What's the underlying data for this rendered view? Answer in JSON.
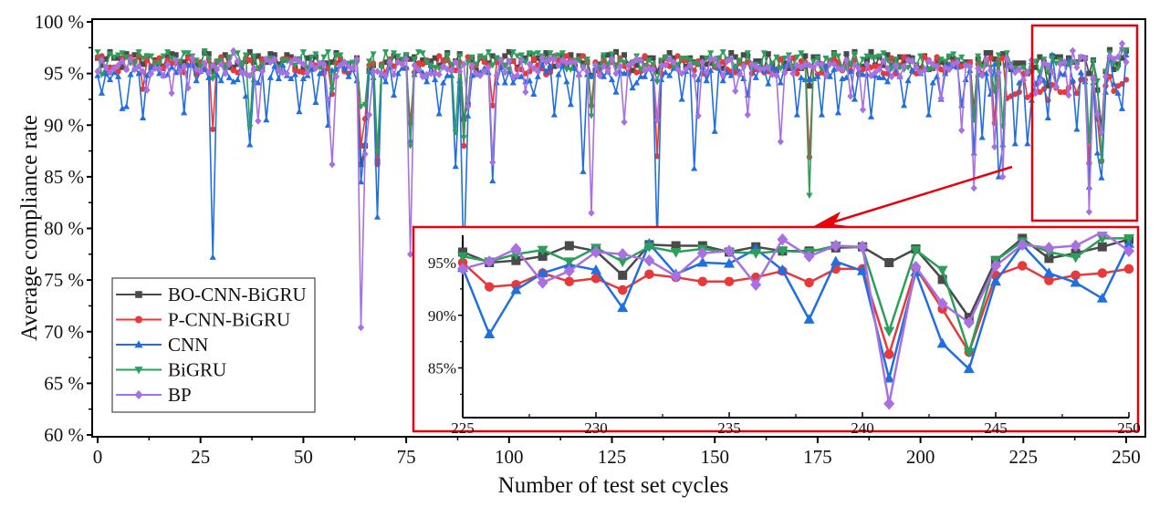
{
  "chart_data": {
    "type": "line",
    "title": "",
    "xlabel": "Number of test set cycles",
    "ylabel": "Average compliance rate",
    "xlim": [
      -1,
      255
    ],
    "ylim": [
      60,
      100
    ],
    "x_ticks": [
      0,
      25,
      50,
      75,
      100,
      125,
      150,
      175,
      200,
      225,
      250
    ],
    "x_tick_labels": [
      "0",
      "25",
      "50",
      "75",
      "100",
      "125",
      "150",
      "175",
      "200",
      "225",
      "250"
    ],
    "y_ticks": [
      60,
      65,
      70,
      75,
      80,
      85,
      90,
      95,
      100
    ],
    "y_tick_labels": [
      "60 %",
      "65 %",
      "70 %",
      "75 %",
      "80 %",
      "85 %",
      "90 %",
      "95 %",
      "100 %"
    ],
    "grid": false,
    "legend": {
      "position": "bottom-left",
      "entries": [
        "BO-CNN-BiGRU",
        "P-CNN-BiGRU",
        "CNN",
        "BiGRU",
        "BP"
      ]
    },
    "series": [
      {
        "name": "BO-CNN-BiGRU",
        "color": "#4a4a4a",
        "marker": "square",
        "baseline": 96.2,
        "dips": {
          "28": 95.2,
          "64": 86.2,
          "65": 88.0,
          "68": 86.5,
          "89": 90.6,
          "90": 92.0,
          "120": 94.8,
          "136": 95.2,
          "173": 93.8,
          "213": 91.5,
          "225": 96.0,
          "226": 95.0,
          "227": 95.2,
          "228": 95.6,
          "229": 96.6,
          "230": 96.1,
          "231": 93.8,
          "232": 96.7,
          "233": 96.6,
          "234": 96.6,
          "235": 96.0,
          "236": 96.5,
          "237": 96.1,
          "238": 96.1,
          "239": 96.4,
          "240": 96.5,
          "241": 95.0,
          "242": 96.3,
          "243": 93.4,
          "244": 89.8,
          "245": 95.2,
          "246": 97.3,
          "247": 95.4,
          "248": 95.9,
          "249": 96.5,
          "250": 97.2
        }
      },
      {
        "name": "P-CNN-BiGRU",
        "color": "#e8393a",
        "marker": "circle",
        "baseline": 95.8,
        "dips": {
          "11": 93.5,
          "28": 89.6,
          "57": 93.0,
          "64": 88.0,
          "65": 90.6,
          "68": 86.2,
          "76": 90.2,
          "89": 88.0,
          "96": 91.9,
          "120": 91.9,
          "136": 87.0,
          "173": 86.9,
          "213": 91.0,
          "218": 90.2,
          "221": 92.6,
          "222": 92.8,
          "223": 93.0,
          "224": 93.2,
          "225": 95.0,
          "226": 92.7,
          "227": 92.9,
          "228": 94.0,
          "229": 93.2,
          "230": 93.5,
          "231": 92.4,
          "232": 93.9,
          "233": 93.6,
          "234": 93.2,
          "235": 93.2,
          "236": 93.6,
          "237": 94.2,
          "238": 93.1,
          "239": 94.4,
          "240": 94.4,
          "241": 86.3,
          "242": 94.5,
          "243": 90.6,
          "244": 86.5,
          "245": 93.8,
          "246": 94.7,
          "247": 93.3,
          "248": 93.8,
          "249": 94.0,
          "250": 94.4
        }
      },
      {
        "name": "CNN",
        "color": "#1f6fe0",
        "marker": "triangle-up",
        "baseline": 95.0,
        "dips": {
          "1": 93.1,
          "6": 91.6,
          "7": 91.8,
          "11": 90.7,
          "21": 91.2,
          "28": 77.2,
          "36": 92.8,
          "37": 88.1,
          "41": 90.5,
          "49": 91.3,
          "53": 92.2,
          "56": 90.0,
          "64": 84.5,
          "65": 88.2,
          "68": 81.1,
          "72": 92.9,
          "76": 88.5,
          "83": 91.1,
          "87": 86.0,
          "89": 76.0,
          "90": 90.9,
          "96": 84.6,
          "106": 93.0,
          "111": 91.0,
          "115": 92.0,
          "118": 85.5,
          "126": 93.2,
          "130": 93.6,
          "136": 78.5,
          "139": 94.8,
          "142": 92.5,
          "145": 85.8,
          "150": 89.4,
          "158": 92.9,
          "163": 94.0,
          "170": 91.0,
          "176": 91.0,
          "180": 91.2,
          "184": 92.5,
          "188": 90.8,
          "192": 94.2,
          "196": 91.9,
          "202": 91.0,
          "205": 92.5,
          "210": 91.9,
          "213": 87.3,
          "215": 88.8,
          "217": 93.0,
          "219": 85.0,
          "220": 88.1,
          "223": 88.2,
          "225": 94.5,
          "226": 88.2,
          "227": 92.4,
          "228": 94.0,
          "229": 94.8,
          "230": 94.3,
          "231": 90.7,
          "232": 96.8,
          "233": 93.9,
          "234": 95.0,
          "235": 94.9,
          "236": 96.3,
          "237": 94.3,
          "238": 89.6,
          "239": 95.1,
          "240": 94.2,
          "241": 84.0,
          "242": 94.1,
          "243": 87.3,
          "244": 84.9,
          "245": 93.2,
          "246": 96.7,
          "247": 94.0,
          "248": 93.1,
          "249": 91.6,
          "250": 96.8
        }
      },
      {
        "name": "BiGRU",
        "color": "#2aa05a",
        "marker": "triangle-down",
        "baseline": 96.3,
        "dips": {
          "1": 94.9,
          "3": 96.9,
          "28": 94.5,
          "37": 89.8,
          "57": 93.4,
          "64": 91.8,
          "65": 92.0,
          "68": 87.5,
          "76": 88.0,
          "87": 89.3,
          "89": 88.8,
          "120": 90.9,
          "136": 94.2,
          "173": 83.2,
          "213": 90.5,
          "218": 93.3,
          "220": 89.9,
          "225": 95.6,
          "226": 95.1,
          "227": 95.8,
          "228": 96.2,
          "229": 95.1,
          "230": 96.4,
          "231": 95.1,
          "232": 96.5,
          "233": 96.0,
          "234": 96.3,
          "235": 96.0,
          "236": 95.9,
          "237": 96.1,
          "238": 96.0,
          "239": 96.6,
          "240": 96.4,
          "241": 88.5,
          "242": 96.2,
          "243": 94.3,
          "244": 86.5,
          "245": 95.2,
          "246": 97.0,
          "247": 96.0,
          "248": 95.5,
          "249": 97.3,
          "250": 97.3
        }
      },
      {
        "name": "BP",
        "color": "#a870e0",
        "marker": "diamond",
        "baseline": 95.6,
        "dips": {
          "12": 93.4,
          "18": 93.1,
          "22": 93.6,
          "33": 97.2,
          "39": 90.4,
          "56": 92.5,
          "57": 86.2,
          "64": 70.4,
          "65": 87.2,
          "66": 91.0,
          "76": 77.5,
          "90": 91.8,
          "96": 86.4,
          "104": 93.2,
          "120": 81.5,
          "128": 90.3,
          "136": 90.5,
          "146": 90.9,
          "155": 93.3,
          "158": 91.0,
          "166": 88.4,
          "183": 92.8,
          "186": 91.5,
          "205": 92.6,
          "210": 89.5,
          "213": 83.9,
          "218": 87.9,
          "220": 85.0,
          "225": 94.4,
          "226": 95.1,
          "227": 96.3,
          "228": 93.1,
          "229": 94.2,
          "230": 96.0,
          "231": 95.8,
          "232": 95.2,
          "233": 93.7,
          "234": 95.9,
          "235": 96.1,
          "236": 92.9,
          "237": 97.2,
          "238": 95.6,
          "239": 96.6,
          "240": 96.5,
          "241": 81.6,
          "242": 94.6,
          "243": 91.1,
          "244": 89.3,
          "245": 94.7,
          "246": 96.7,
          "247": 96.4,
          "248": 96.6,
          "249": 97.9,
          "250": 96.1
        }
      }
    ],
    "x_range_note": "x runs 0..250 (251 test cycles); each series listed as a baseline plus explicit per-cycle values where read from the figure",
    "inset": {
      "xlim": [
        225,
        250
      ],
      "ylim": [
        81,
        97.5
      ],
      "x_ticks": [
        225,
        230,
        235,
        240,
        245,
        250
      ],
      "x_tick_labels": [
        "225",
        "230",
        "235",
        "240",
        "245",
        "250"
      ],
      "y_ticks": [
        85,
        90,
        95
      ],
      "y_tick_labels": [
        "85%",
        "90%",
        "95%"
      ],
      "highlight_range": {
        "x": [
          225,
          251
        ],
        "y": [
          79.8,
          97.8
        ]
      }
    },
    "annotations": {
      "highlight_box_color": "#e8000b",
      "arrow": "from highlight box to inset"
    }
  }
}
